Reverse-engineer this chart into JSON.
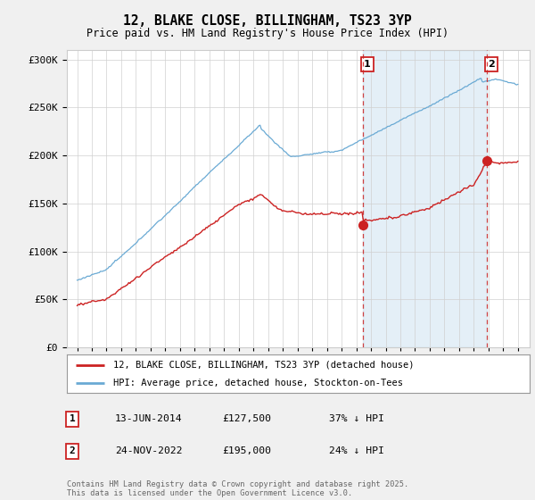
{
  "title": "12, BLAKE CLOSE, BILLINGHAM, TS23 3YP",
  "subtitle": "Price paid vs. HM Land Registry's House Price Index (HPI)",
  "ylabel_ticks": [
    "£0",
    "£50K",
    "£100K",
    "£150K",
    "£200K",
    "£250K",
    "£300K"
  ],
  "ytick_values": [
    0,
    50000,
    100000,
    150000,
    200000,
    250000,
    300000
  ],
  "ylim": [
    0,
    310000
  ],
  "hpi_color": "#6aaad4",
  "price_color": "#cc2222",
  "sale1_date": 2014.45,
  "sale1_price": 127500,
  "sale2_date": 2022.9,
  "sale2_price": 195000,
  "legend_line1": "12, BLAKE CLOSE, BILLINGHAM, TS23 3YP (detached house)",
  "legend_line2": "HPI: Average price, detached house, Stockton-on-Tees",
  "anno1_date": "13-JUN-2014",
  "anno1_price": "£127,500",
  "anno1_hpi": "37% ↓ HPI",
  "anno2_date": "24-NOV-2022",
  "anno2_price": "£195,000",
  "anno2_hpi": "24% ↓ HPI",
  "footer": "Contains HM Land Registry data © Crown copyright and database right 2025.\nThis data is licensed under the Open Government Licence v3.0.",
  "background_color": "#f0f0f0",
  "plot_bg_color": "#ffffff",
  "shade_color": "#ddeeff"
}
